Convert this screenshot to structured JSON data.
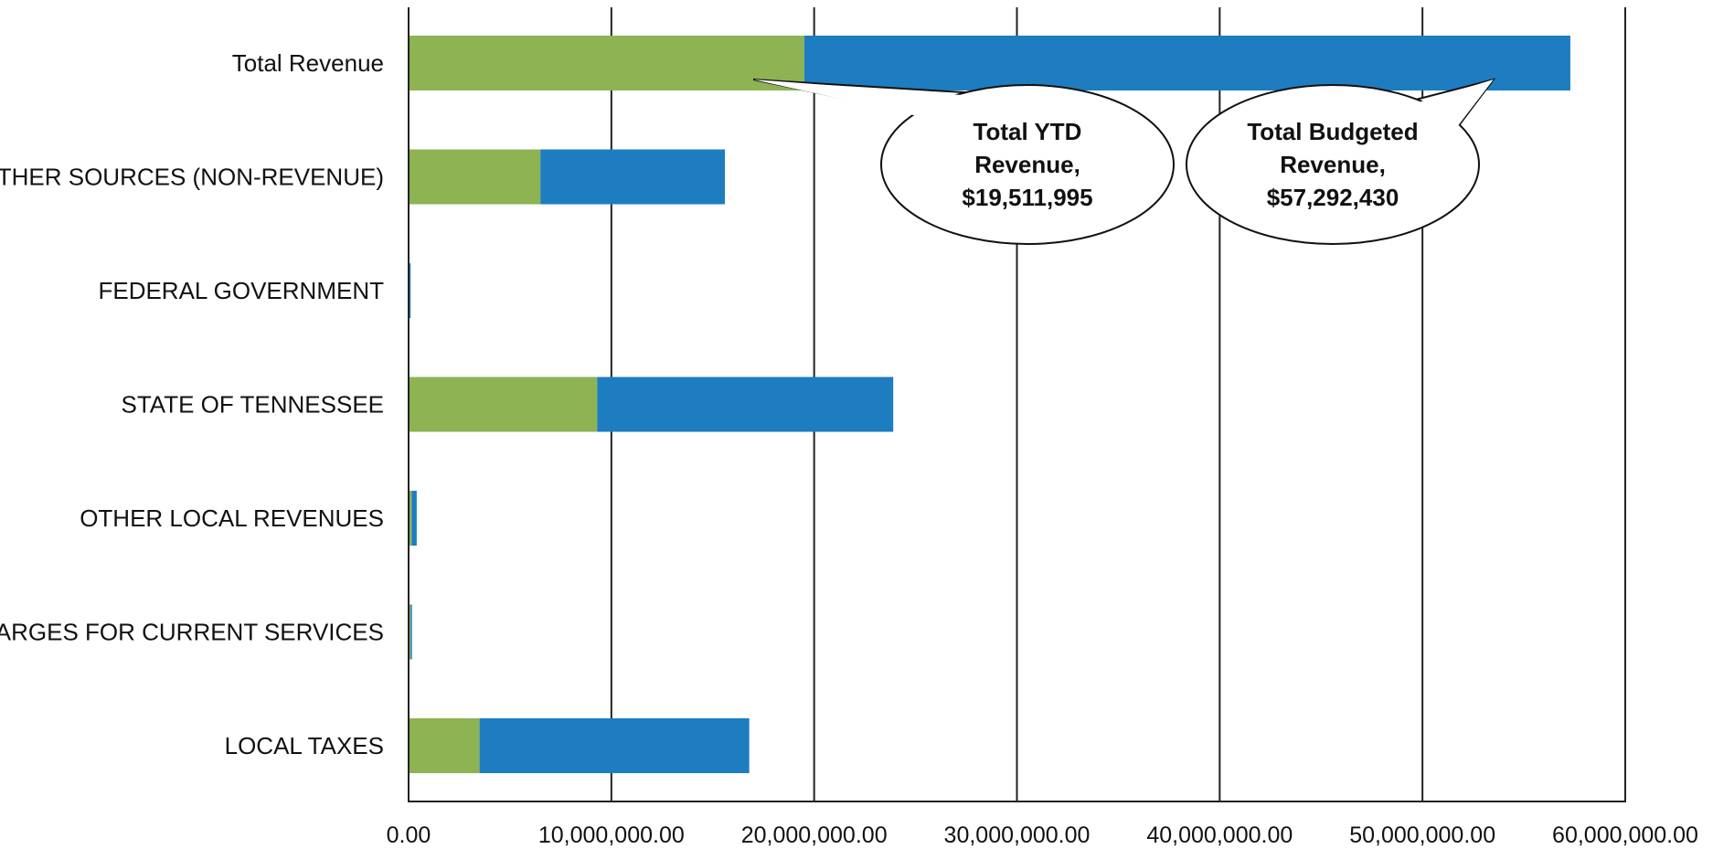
{
  "chart_data": {
    "type": "bar",
    "orientation": "horizontal",
    "stacked": true,
    "title": "",
    "xlabel": "",
    "ylabel": "",
    "xlim": [
      0,
      60000000
    ],
    "grid": true,
    "legend": "none",
    "categories": [
      "Total Revenue",
      "OTHER SOURCES (NON-REVENUE)",
      "FEDERAL GOVERNMENT",
      "STATE OF TENNESSEE",
      "OTHER LOCAL REVENUES",
      "CHARGES FOR CURRENT SERVICES",
      "LOCAL TAXES"
    ],
    "x_ticks": [
      0,
      10000000,
      20000000,
      30000000,
      40000000,
      50000000,
      60000000
    ],
    "x_tick_labels": [
      "0.00",
      "10,000,000.00",
      "20,000,000.00",
      "30,000,000.00",
      "40,000,000.00",
      "50,000,000.00",
      "60,000,000.00"
    ],
    "series": [
      {
        "color": "#8db353",
        "values": [
          19511995,
          6500000,
          30000,
          9300000,
          150000,
          100000,
          3500000
        ]
      },
      {
        "color": "#1e7cc0",
        "values": [
          37780435,
          9100000,
          70000,
          14600000,
          250000,
          50000,
          13300000
        ]
      }
    ],
    "annotations": [
      {
        "lines": [
          "Total YTD",
          "Revenue,",
          "$19,511,995"
        ],
        "target_value": 17000000,
        "target_category": "Total Revenue"
      },
      {
        "lines": [
          "Total Budgeted",
          "Revenue,",
          "$57,292,430"
        ],
        "target_value": 53500000,
        "target_category": "Total Revenue"
      }
    ]
  }
}
